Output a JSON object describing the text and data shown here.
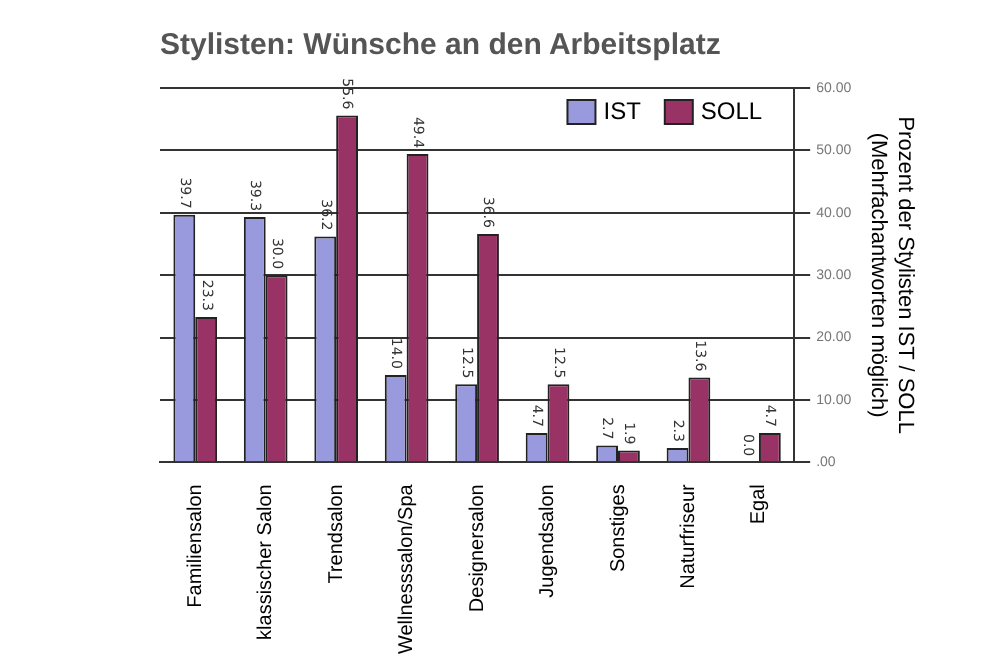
{
  "chart_data": {
    "type": "bar",
    "title": "Stylisten: Wünsche an den Arbeitsplatz",
    "ylabel": "Prozent der Stylisten IST / SOLL\n(Mehrfachantworten möglich)",
    "categories": [
      "Familiensalon",
      "klassischer Salon",
      "Trendsalon",
      "Wellnesssalon/Spa",
      "Designersalon",
      "Jugendsalon",
      "Sonstiges",
      "Naturfriseur",
      "Egal"
    ],
    "series": [
      {
        "name": "IST",
        "color": "#9999dd",
        "values": [
          39.7,
          39.3,
          36.2,
          14.0,
          12.5,
          4.7,
          2.7,
          2.3,
          0.0
        ],
        "value_labels": [
          "39.7",
          "39.3",
          "36.2",
          "14.0",
          "12.5",
          "4.7",
          "2.7",
          "2.3",
          "0.0"
        ]
      },
      {
        "name": "SOLL",
        "color": "#993366",
        "values": [
          23.3,
          30.0,
          55.6,
          49.4,
          36.6,
          12.5,
          1.9,
          13.6,
          4.7
        ],
        "value_labels": [
          "23.3",
          "30.0",
          "55.6",
          "49.4",
          "36.6",
          "12.5",
          "1.9",
          "13.6",
          "4.7"
        ]
      }
    ],
    "ylim": [
      0,
      60
    ],
    "yticks": [
      {
        "value": 0,
        "label": ".00"
      },
      {
        "value": 10,
        "label": "10.00"
      },
      {
        "value": 20,
        "label": "20.00"
      },
      {
        "value": 30,
        "label": "30.00"
      },
      {
        "value": 40,
        "label": "40.00"
      },
      {
        "value": 50,
        "label": "50.00"
      },
      {
        "value": 60,
        "label": "60.00"
      }
    ],
    "grid": "y",
    "legend": "top right"
  }
}
